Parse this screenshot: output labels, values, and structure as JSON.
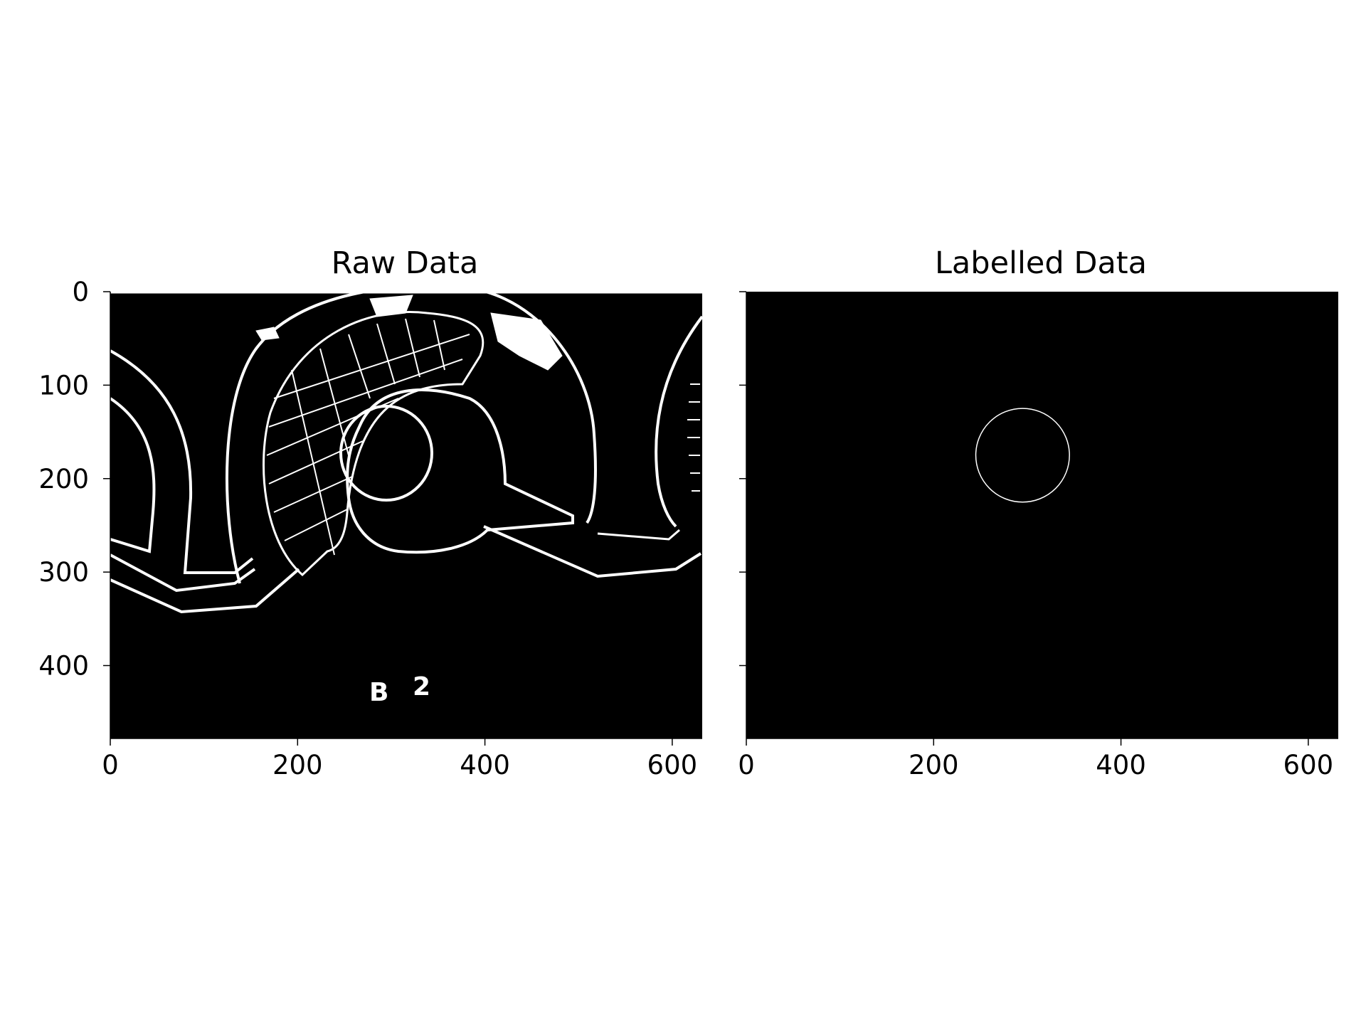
{
  "chart_data": [
    {
      "type": "image",
      "title": "Raw Data",
      "x_ticks": [
        0,
        200,
        400,
        600
      ],
      "y_ticks": [
        0,
        100,
        200,
        300,
        400
      ],
      "xlim": [
        0,
        632
      ],
      "ylim": [
        478,
        0
      ],
      "colormap": "gray",
      "background": "#000000",
      "text_in_image": [
        "B",
        "2"
      ]
    },
    {
      "type": "image",
      "title": "Labelled Data",
      "x_ticks": [
        0,
        200,
        400,
        600
      ],
      "y_ticks": [
        0,
        100,
        200,
        300,
        400
      ],
      "xlim": [
        0,
        632
      ],
      "ylim": [
        478,
        0
      ],
      "colormap": "gray",
      "background": "#000000",
      "circle": {
        "center_x": 295,
        "center_y": 175,
        "radius": 50
      }
    }
  ]
}
